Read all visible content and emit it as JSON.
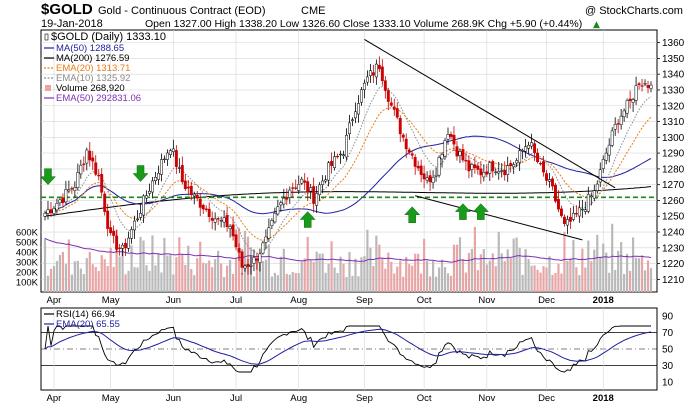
{
  "header": {
    "symbol": "$GOLD",
    "name": "Gold - Continuous Contract (EOD)",
    "exchange": "CME",
    "date": "19-Jan-2018",
    "watermark": "@ StockCharts.com",
    "ohlc": "Open 1327.00   High 1338.20   Low 1326.60   Close 1333.10   Volume 268.9K   Chg +5.90 (+0.44%)",
    "chg_arrow": "▲"
  },
  "legend": [
    {
      "label": "$GOLD (Daily) 1333.10",
      "color": "#000000",
      "kind": "candle"
    },
    {
      "label": "MA(50) 1288.65",
      "color": "#1f1f9f",
      "kind": "line"
    },
    {
      "label": "MA(200) 1276.59",
      "color": "#000000",
      "kind": "line"
    },
    {
      "label": "EMA(20) 1313.71",
      "color": "#e87d14",
      "kind": "dot"
    },
    {
      "label": "EMA(10) 1325.92",
      "color": "#8c8c8c",
      "kind": "dot"
    },
    {
      "label": "Volume 268,920",
      "color": "#e8a5a5",
      "kind": "box"
    },
    {
      "label": "EMA(50) 292831.06",
      "color": "#7b2fb5",
      "kind": "line"
    }
  ],
  "rsi_legend": [
    {
      "label": "RSI(14) 66.94",
      "color": "#000000"
    },
    {
      "label": "EMA(20) 65.55",
      "color": "#1f1f9f"
    }
  ],
  "chart_data": {
    "type": "candlestick",
    "price_axis": {
      "min": 1202,
      "max": 1368,
      "ticks": [
        1210,
        1220,
        1230,
        1240,
        1250,
        1260,
        1270,
        1280,
        1290,
        1300,
        1310,
        1320,
        1330,
        1340,
        1350,
        1360
      ]
    },
    "volume_axis": {
      "max": 1200000,
      "ticks": [
        "100K",
        "200K",
        "300K",
        "400K",
        "500K",
        "600K"
      ],
      "tick_values": [
        100000,
        200000,
        300000,
        400000,
        500000,
        600000
      ]
    },
    "rsi_axis": {
      "min": 0,
      "max": 100,
      "ticks": [
        10,
        30,
        50,
        70,
        90
      ],
      "bands": [
        30,
        70
      ],
      "midline": 50
    },
    "x_labels": [
      "Apr",
      "May",
      "Jun",
      "Jul",
      "Aug",
      "Sep",
      "Oct",
      "Nov",
      "Dec",
      "2018"
    ],
    "x_label_index": [
      3,
      22,
      43,
      64,
      85,
      107,
      127,
      148,
      168,
      187
    ],
    "num_days": 204,
    "close_keypoints": [
      [
        0,
        1252
      ],
      [
        6,
        1262
      ],
      [
        10,
        1270
      ],
      [
        14,
        1292
      ],
      [
        18,
        1275
      ],
      [
        22,
        1236
      ],
      [
        26,
        1228
      ],
      [
        31,
        1250
      ],
      [
        35,
        1268
      ],
      [
        38,
        1280
      ],
      [
        42,
        1295
      ],
      [
        46,
        1272
      ],
      [
        50,
        1262
      ],
      [
        54,
        1255
      ],
      [
        58,
        1247
      ],
      [
        62,
        1244
      ],
      [
        66,
        1218
      ],
      [
        70,
        1222
      ],
      [
        74,
        1234
      ],
      [
        78,
        1254
      ],
      [
        82,
        1268
      ],
      [
        86,
        1272
      ],
      [
        90,
        1262
      ],
      [
        95,
        1280
      ],
      [
        100,
        1292
      ],
      [
        104,
        1320
      ],
      [
        108,
        1337
      ],
      [
        112,
        1346
      ],
      [
        116,
        1320
      ],
      [
        120,
        1300
      ],
      [
        124,
        1285
      ],
      [
        128,
        1272
      ],
      [
        131,
        1280
      ],
      [
        135,
        1305
      ],
      [
        138,
        1292
      ],
      [
        142,
        1280
      ],
      [
        146,
        1278
      ],
      [
        150,
        1282
      ],
      [
        154,
        1280
      ],
      [
        158,
        1285
      ],
      [
        162,
        1298
      ],
      [
        166,
        1280
      ],
      [
        170,
        1266
      ],
      [
        174,
        1243
      ],
      [
        177,
        1248
      ],
      [
        180,
        1255
      ],
      [
        184,
        1265
      ],
      [
        188,
        1290
      ],
      [
        192,
        1312
      ],
      [
        196,
        1322
      ],
      [
        199,
        1336
      ],
      [
        202,
        1333
      ],
      [
        203,
        1333
      ]
    ],
    "horizontal_line": {
      "price": 1262,
      "color": "#1a8a1a",
      "style": "dashed"
    },
    "trendlines": [
      {
        "from": [
          107,
          1362
        ],
        "to": [
          191,
          1268
        ],
        "color": "#000000"
      },
      {
        "from": [
          124,
          1263
        ],
        "to": [
          180,
          1235
        ],
        "color": "#000000"
      }
    ],
    "arrows_down": [
      [
        1,
        1270
      ],
      [
        32,
        1272
      ]
    ],
    "arrows_up": [
      [
        88,
        1253
      ],
      [
        123,
        1256
      ],
      [
        140,
        1258
      ],
      [
        146,
        1258
      ]
    ],
    "volume_range": [
      150000,
      700000
    ],
    "rsi_range": [
      22,
      78
    ]
  }
}
